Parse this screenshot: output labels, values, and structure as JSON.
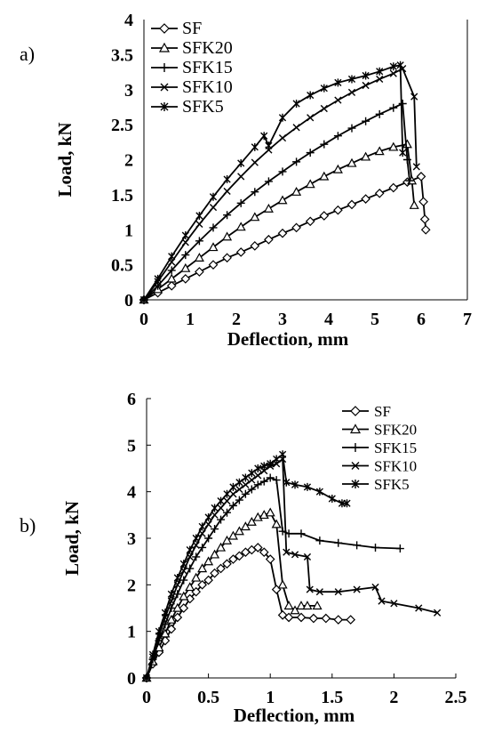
{
  "chart_data": [
    {
      "type": "line",
      "panel_label": "a)",
      "xlabel": "Deflection, mm",
      "ylabel": "Load, kN",
      "xlim": [
        0,
        7
      ],
      "ylim": [
        0,
        4
      ],
      "x_ticks": [
        "0",
        "1",
        "2",
        "3",
        "4",
        "5",
        "6",
        "7"
      ],
      "y_ticks": [
        "0",
        "0.5",
        "1",
        "1.5",
        "2",
        "2.5",
        "3",
        "3.5",
        "4"
      ],
      "grid": false,
      "legend_position": "top-left",
      "series": [
        {
          "name": "SF",
          "marker": "diamond",
          "x": [
            0,
            0.3,
            0.6,
            0.9,
            1.2,
            1.5,
            1.8,
            2.1,
            2.4,
            2.7,
            3.0,
            3.3,
            3.6,
            3.9,
            4.2,
            4.5,
            4.8,
            5.1,
            5.4,
            5.7,
            6.0,
            6.05,
            6.08,
            6.1
          ],
          "y": [
            0,
            0.1,
            0.2,
            0.3,
            0.4,
            0.5,
            0.6,
            0.68,
            0.77,
            0.86,
            0.95,
            1.03,
            1.12,
            1.2,
            1.28,
            1.36,
            1.44,
            1.52,
            1.6,
            1.68,
            1.76,
            1.4,
            1.15,
            1.0
          ]
        },
        {
          "name": "SFK20",
          "marker": "triangle",
          "x": [
            0,
            0.3,
            0.6,
            0.9,
            1.2,
            1.5,
            1.8,
            2.1,
            2.4,
            2.7,
            3.0,
            3.3,
            3.6,
            3.9,
            4.2,
            4.5,
            4.8,
            5.1,
            5.4,
            5.7,
            5.8,
            5.85
          ],
          "y": [
            0,
            0.15,
            0.3,
            0.45,
            0.6,
            0.75,
            0.9,
            1.04,
            1.18,
            1.3,
            1.42,
            1.54,
            1.65,
            1.76,
            1.86,
            1.95,
            2.04,
            2.12,
            2.18,
            2.22,
            1.7,
            1.35
          ]
        },
        {
          "name": "SFK15",
          "marker": "plus",
          "x": [
            0,
            0.3,
            0.6,
            0.9,
            1.2,
            1.5,
            1.8,
            2.1,
            2.4,
            2.7,
            3.0,
            3.3,
            3.6,
            3.9,
            4.2,
            4.5,
            4.8,
            5.1,
            5.4,
            5.6,
            5.7,
            5.75
          ],
          "y": [
            0,
            0.2,
            0.42,
            0.64,
            0.84,
            1.03,
            1.21,
            1.38,
            1.54,
            1.69,
            1.83,
            1.97,
            2.1,
            2.22,
            2.34,
            2.45,
            2.55,
            2.65,
            2.74,
            2.8,
            2.0,
            1.7
          ]
        },
        {
          "name": "SFK10",
          "marker": "x",
          "x": [
            0,
            0.3,
            0.6,
            0.9,
            1.2,
            1.5,
            1.8,
            2.1,
            2.4,
            2.7,
            3.0,
            3.3,
            3.6,
            3.9,
            4.2,
            4.5,
            4.8,
            5.1,
            5.4,
            5.6,
            5.85,
            5.9
          ],
          "y": [
            0,
            0.26,
            0.54,
            0.82,
            1.08,
            1.32,
            1.55,
            1.76,
            1.96,
            2.14,
            2.31,
            2.46,
            2.6,
            2.73,
            2.85,
            2.96,
            3.06,
            3.15,
            3.23,
            3.3,
            2.9,
            1.9
          ]
        },
        {
          "name": "SFK5",
          "marker": "asterisk",
          "x": [
            0,
            0.3,
            0.6,
            0.9,
            1.2,
            1.5,
            1.8,
            2.1,
            2.4,
            2.6,
            2.7,
            3.0,
            3.3,
            3.6,
            3.9,
            4.2,
            4.5,
            4.8,
            5.1,
            5.4,
            5.55,
            5.6
          ],
          "y": [
            0,
            0.3,
            0.62,
            0.92,
            1.2,
            1.47,
            1.72,
            1.95,
            2.18,
            2.34,
            2.2,
            2.6,
            2.8,
            2.92,
            3.02,
            3.1,
            3.15,
            3.2,
            3.26,
            3.33,
            3.35,
            2.1
          ]
        }
      ]
    },
    {
      "type": "line",
      "panel_label": "b)",
      "xlabel": "Deflection, mm",
      "ylabel": "Load, kN",
      "xlim": [
        0,
        2.5
      ],
      "ylim": [
        0,
        6
      ],
      "x_ticks": [
        "0",
        "0.5",
        "1",
        "1.5",
        "2",
        "2.5"
      ],
      "y_ticks": [
        "0",
        "1",
        "2",
        "3",
        "4",
        "5",
        "6"
      ],
      "grid": false,
      "legend_position": "top-right",
      "series": [
        {
          "name": "SF",
          "marker": "diamond",
          "x": [
            0,
            0.05,
            0.1,
            0.15,
            0.2,
            0.25,
            0.3,
            0.35,
            0.4,
            0.45,
            0.5,
            0.55,
            0.6,
            0.65,
            0.7,
            0.75,
            0.8,
            0.85,
            0.9,
            0.95,
            1.0,
            1.05,
            1.1,
            1.15,
            1.25,
            1.35,
            1.45,
            1.55,
            1.65
          ],
          "y": [
            0,
            0.3,
            0.55,
            0.8,
            1.05,
            1.3,
            1.5,
            1.7,
            1.85,
            2.0,
            2.1,
            2.25,
            2.35,
            2.45,
            2.55,
            2.62,
            2.7,
            2.75,
            2.8,
            2.7,
            2.55,
            1.9,
            1.35,
            1.3,
            1.3,
            1.28,
            1.28,
            1.25,
            1.25
          ]
        },
        {
          "name": "SFK20",
          "marker": "triangle",
          "x": [
            0,
            0.05,
            0.1,
            0.15,
            0.2,
            0.25,
            0.3,
            0.35,
            0.4,
            0.45,
            0.5,
            0.55,
            0.6,
            0.65,
            0.7,
            0.75,
            0.8,
            0.85,
            0.9,
            0.95,
            1.0,
            1.05,
            1.1,
            1.15,
            1.2,
            1.25,
            1.3,
            1.38
          ],
          "y": [
            0,
            0.35,
            0.65,
            0.95,
            1.25,
            1.5,
            1.75,
            1.95,
            2.15,
            2.35,
            2.5,
            2.65,
            2.8,
            2.95,
            3.05,
            3.15,
            3.25,
            3.35,
            3.45,
            3.5,
            3.55,
            3.3,
            2.0,
            1.55,
            1.45,
            1.55,
            1.55,
            1.55
          ]
        },
        {
          "name": "SFK15",
          "marker": "plus",
          "x": [
            0,
            0.05,
            0.1,
            0.15,
            0.2,
            0.25,
            0.3,
            0.35,
            0.4,
            0.45,
            0.5,
            0.55,
            0.6,
            0.65,
            0.7,
            0.75,
            0.8,
            0.85,
            0.9,
            0.95,
            1.0,
            1.05,
            1.1,
            1.15,
            1.25,
            1.4,
            1.55,
            1.7,
            1.85,
            2.05
          ],
          "y": [
            0,
            0.4,
            0.8,
            1.15,
            1.5,
            1.8,
            2.1,
            2.35,
            2.6,
            2.8,
            3.0,
            3.2,
            3.4,
            3.55,
            3.7,
            3.82,
            3.95,
            4.05,
            4.15,
            4.22,
            4.3,
            4.25,
            3.15,
            3.1,
            3.1,
            2.95,
            2.9,
            2.85,
            2.8,
            2.78
          ]
        },
        {
          "name": "SFK10",
          "marker": "x",
          "x": [
            0,
            0.05,
            0.1,
            0.15,
            0.2,
            0.25,
            0.3,
            0.35,
            0.4,
            0.45,
            0.5,
            0.55,
            0.6,
            0.65,
            0.7,
            0.75,
            0.8,
            0.85,
            0.9,
            0.95,
            1.0,
            1.05,
            1.1,
            1.13,
            1.2,
            1.3,
            1.32,
            1.4,
            1.55,
            1.7,
            1.85,
            1.9,
            2.0,
            2.2,
            2.35
          ],
          "y": [
            0,
            0.45,
            0.9,
            1.3,
            1.65,
            2.0,
            2.3,
            2.6,
            2.85,
            3.1,
            3.3,
            3.5,
            3.65,
            3.8,
            3.95,
            4.05,
            4.15,
            4.25,
            4.35,
            4.45,
            4.55,
            4.6,
            4.7,
            2.7,
            2.65,
            2.6,
            1.9,
            1.85,
            1.85,
            1.9,
            1.95,
            1.65,
            1.6,
            1.5,
            1.4
          ]
        },
        {
          "name": "SFK5",
          "marker": "asterisk",
          "x": [
            0,
            0.05,
            0.1,
            0.15,
            0.2,
            0.25,
            0.3,
            0.35,
            0.4,
            0.45,
            0.5,
            0.55,
            0.6,
            0.65,
            0.7,
            0.75,
            0.8,
            0.85,
            0.9,
            0.95,
            1.0,
            1.05,
            1.1,
            1.13,
            1.2,
            1.3,
            1.4,
            1.5,
            1.58,
            1.62
          ],
          "y": [
            0,
            0.5,
            1.0,
            1.4,
            1.8,
            2.15,
            2.45,
            2.75,
            3.0,
            3.25,
            3.45,
            3.65,
            3.8,
            3.95,
            4.1,
            4.2,
            4.3,
            4.4,
            4.5,
            4.55,
            4.6,
            4.7,
            4.8,
            4.2,
            4.15,
            4.1,
            4.0,
            3.85,
            3.75,
            3.75
          ]
        }
      ]
    }
  ]
}
